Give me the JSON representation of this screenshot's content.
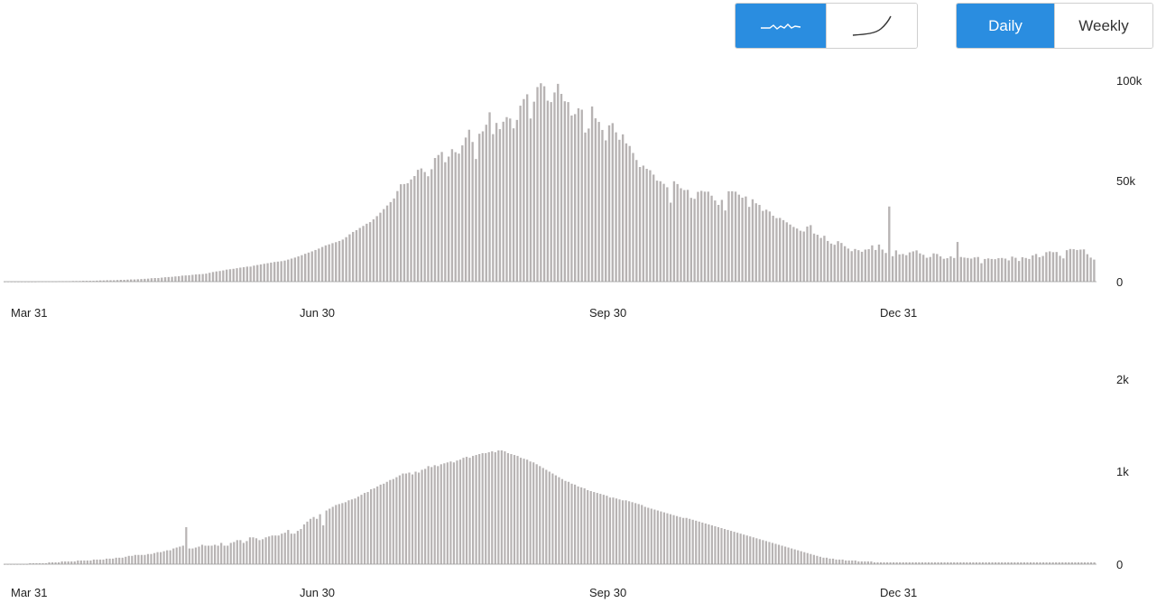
{
  "controls": {
    "scale_options": [
      {
        "icon": "linear-wave-icon",
        "active": true
      },
      {
        "icon": "log-curve-icon",
        "active": false
      }
    ],
    "period_options": [
      {
        "label": "Daily",
        "active": true
      },
      {
        "label": "Weekly",
        "active": false
      }
    ],
    "active_color": "#2a8de0"
  },
  "chart_data": [
    {
      "type": "bar",
      "x_start": "Mar 31",
      "x_ticks": [
        "Mar 31",
        "Jun 30",
        "Sep 30",
        "Dec 31"
      ],
      "y_ticks": [
        "0",
        "50k",
        "100k"
      ],
      "ylim": [
        0,
        100000
      ],
      "bar_color": "#b7b3b3",
      "grid": false,
      "values": [
        0,
        0,
        0,
        0,
        0,
        0,
        0,
        0,
        0,
        0,
        100,
        100,
        100,
        100,
        100,
        100,
        200,
        200,
        200,
        200,
        300,
        300,
        300,
        400,
        400,
        400,
        400,
        500,
        600,
        600,
        700,
        700,
        700,
        800,
        900,
        900,
        1000,
        1100,
        1100,
        1200,
        1300,
        1400,
        1500,
        1700,
        1800,
        1800,
        2000,
        2200,
        2300,
        2400,
        2600,
        2700,
        3000,
        3100,
        3200,
        3400,
        3600,
        3700,
        3800,
        4000,
        4400,
        4800,
        5100,
        5300,
        5600,
        6000,
        6200,
        6400,
        6700,
        7000,
        7200,
        7500,
        7500,
        8000,
        8300,
        8600,
        8900,
        9200,
        9500,
        9800,
        10000,
        10200,
        10500,
        11000,
        11500,
        12000,
        12600,
        13200,
        13900,
        14500,
        15100,
        15800,
        16500,
        17300,
        18100,
        18600,
        19200,
        19700,
        20300,
        21000,
        22200,
        23600,
        24800,
        25700,
        26800,
        27800,
        28900,
        29700,
        31100,
        32700,
        34400,
        36200,
        38000,
        39700,
        41500,
        45200,
        48600,
        48700,
        49100,
        51000,
        52700,
        55800,
        56500,
        54700,
        52600,
        56100,
        61700,
        63200,
        64700,
        59600,
        62400,
        66100,
        64600,
        63900,
        68000,
        71900,
        75800,
        69700,
        61200,
        73800,
        75000,
        78300,
        84500,
        73600,
        79200,
        76100,
        79800,
        82100,
        81400,
        76500,
        80700,
        87800,
        91100,
        93500,
        81400,
        89800,
        97100,
        99000,
        97500,
        90300,
        89600,
        94400,
        98700,
        93700,
        90000,
        89600,
        82900,
        83600,
        86500,
        85800,
        74400,
        76400,
        87400,
        81500,
        79700,
        75700,
        70500,
        78000,
        79100,
        74500,
        70800,
        73500,
        69000,
        67700,
        64200,
        60700,
        57200,
        57900,
        56300,
        55600,
        53400,
        50400,
        50100,
        48800,
        47100,
        39400,
        50100,
        48700,
        46600,
        45700,
        45800,
        41800,
        41300,
        44800,
        45300,
        44900,
        44900,
        42900,
        40500,
        38300,
        40800,
        35500,
        45100,
        45100,
        44900,
        43400,
        41900,
        42500,
        37300,
        41100,
        39100,
        38300,
        35300,
        35900,
        35000,
        32900,
        31700,
        31800,
        30700,
        29600,
        28500,
        27300,
        26500,
        25400,
        25000,
        27500,
        28200,
        24000,
        23400,
        21800,
        22900,
        20300,
        19000,
        18400,
        20200,
        19300,
        17700,
        16500,
        15200,
        16300,
        15700,
        14900,
        16000,
        16200,
        18100,
        15800,
        18500,
        16000,
        14300,
        37500,
        12700,
        15600,
        13600,
        13800,
        13200,
        14600,
        15100,
        15600,
        14100,
        13400,
        11900,
        12300,
        14100,
        13800,
        12600,
        11400,
        11700,
        12600,
        11800,
        19800,
        12300,
        12000,
        11800,
        11500,
        12100,
        12300,
        9200,
        11300,
        11600,
        11300,
        11200,
        11700,
        11800,
        11500,
        10600,
        12500,
        11900,
        10300,
        12200,
        11800,
        11300,
        13100,
        13800,
        12200,
        12800,
        14700,
        15100,
        14700,
        14800,
        12900,
        11600,
        15700,
        16300,
        16200,
        15800,
        16000,
        16100,
        13700,
        12000,
        11000
      ]
    },
    {
      "type": "bar",
      "x_start": "Mar 31",
      "x_ticks": [
        "Mar 31",
        "Jun 30",
        "Sep 30",
        "Dec 31"
      ],
      "y_ticks": [
        "0",
        "1k",
        "2k"
      ],
      "ylim": [
        0,
        2000
      ],
      "bar_color": "#b7b3b3",
      "grid": false,
      "values": [
        0,
        0,
        0,
        0,
        0,
        0,
        0,
        0,
        10,
        10,
        10,
        10,
        10,
        10,
        20,
        20,
        20,
        20,
        30,
        30,
        30,
        30,
        30,
        40,
        40,
        40,
        40,
        40,
        50,
        50,
        50,
        50,
        60,
        60,
        60,
        70,
        70,
        70,
        80,
        90,
        90,
        100,
        100,
        100,
        100,
        110,
        110,
        120,
        130,
        130,
        140,
        150,
        150,
        170,
        180,
        190,
        200,
        400,
        170,
        170,
        180,
        190,
        210,
        200,
        200,
        200,
        210,
        200,
        230,
        200,
        200,
        230,
        240,
        260,
        260,
        230,
        250,
        290,
        290,
        280,
        260,
        270,
        290,
        300,
        310,
        310,
        310,
        330,
        340,
        370,
        330,
        330,
        360,
        380,
        430,
        460,
        490,
        510,
        490,
        540,
        420,
        580,
        600,
        620,
        640,
        650,
        660,
        670,
        690,
        700,
        710,
        730,
        750,
        770,
        780,
        810,
        820,
        840,
        860,
        870,
        890,
        910,
        920,
        940,
        960,
        980,
        980,
        990,
        970,
        1000,
        990,
        1020,
        1030,
        1060,
        1050,
        1070,
        1060,
        1080,
        1090,
        1100,
        1110,
        1100,
        1120,
        1130,
        1150,
        1160,
        1150,
        1170,
        1180,
        1190,
        1200,
        1200,
        1210,
        1220,
        1210,
        1230,
        1230,
        1220,
        1200,
        1190,
        1180,
        1170,
        1150,
        1140,
        1130,
        1110,
        1100,
        1080,
        1060,
        1040,
        1020,
        1000,
        980,
        960,
        940,
        920,
        900,
        890,
        870,
        860,
        840,
        830,
        820,
        800,
        790,
        780,
        770,
        760,
        750,
        740,
        720,
        720,
        710,
        700,
        690,
        690,
        680,
        670,
        660,
        650,
        640,
        620,
        610,
        600,
        590,
        580,
        570,
        560,
        550,
        540,
        530,
        520,
        510,
        500,
        500,
        490,
        480,
        470,
        460,
        450,
        440,
        430,
        420,
        410,
        400,
        390,
        380,
        370,
        360,
        350,
        340,
        330,
        320,
        310,
        300,
        290,
        280,
        270,
        260,
        250,
        240,
        230,
        220,
        210,
        200,
        190,
        180,
        170,
        160,
        150,
        140,
        130,
        120,
        110,
        100,
        90,
        80,
        70,
        70,
        60,
        60,
        50,
        50,
        50,
        40,
        40,
        40,
        40,
        30,
        30,
        30,
        30,
        30,
        20,
        20,
        20,
        20,
        20,
        20,
        20,
        20,
        20,
        20,
        20,
        20,
        20,
        20,
        20,
        20,
        20,
        20,
        20,
        20,
        20,
        20,
        20,
        20,
        20,
        20,
        20,
        20,
        20,
        20,
        20,
        20,
        20,
        20,
        20,
        20,
        20,
        20,
        20,
        20,
        20,
        20,
        20,
        20,
        20,
        20,
        20,
        20,
        20,
        20,
        20,
        20,
        20,
        20,
        20,
        20,
        20,
        20,
        20,
        20,
        20,
        20,
        20,
        20,
        20,
        20,
        20,
        20,
        20,
        20
      ]
    }
  ]
}
